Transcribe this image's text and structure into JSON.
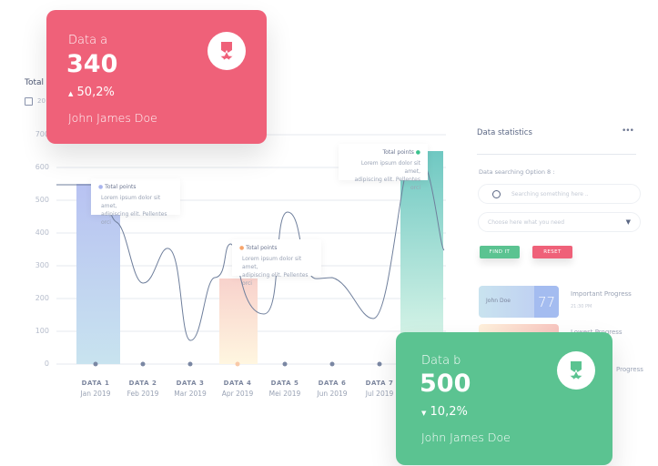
{
  "header": {
    "title": "Total",
    "date": "20"
  },
  "card_a": {
    "label": "Data a",
    "value": "340",
    "change": "50,2%",
    "trend": "up",
    "name": "John James Doe",
    "color": "#ef6179",
    "icon": "award-icon"
  },
  "card_b": {
    "label": "Data b",
    "value": "500",
    "change": "10,2%",
    "trend": "down",
    "name": "John James Doe",
    "color": "#5bc391",
    "icon": "award-icon"
  },
  "panel": {
    "title": "Data statistics",
    "menu_icon": "more-horizontal-icon",
    "search_label": "Data searching Option 8 :",
    "search_placeholder": "Searching something here ..",
    "select_placeholder": "Choose here what you need",
    "find_label": "FIND IT",
    "reset_label": "RESET",
    "progress": [
      {
        "name": "John Doe",
        "value": "77",
        "title": "Important Progress",
        "time": "21:30 PM"
      },
      {
        "title": "Lowest Progress"
      },
      {
        "title": "Progress"
      }
    ]
  },
  "tooltips": [
    {
      "title": "Total points",
      "text1": "Lorem ipsum dolor sit amet,",
      "text2": "adipiscing elit. Pellentes orci"
    },
    {
      "title": "Total points",
      "text1": "Lorem ipsum dolor sit amet,",
      "text2": "adipiscing elit. Pellentes orci"
    },
    {
      "title": "Total points",
      "text1": "Lorem ipsum dolor sit amet,",
      "text2": "adipiscing elit. Pellentes orci"
    }
  ],
  "chart_data": {
    "type": "line",
    "y_ticks": [
      "0",
      "100",
      "200",
      "300",
      "400",
      "500",
      "600",
      "700"
    ],
    "ylim": [
      0,
      700
    ],
    "categories": [
      {
        "label": "DATA 1",
        "date": "Jan 2019"
      },
      {
        "label": "DATA 2",
        "date": "Feb 2019"
      },
      {
        "label": "DATA 3",
        "date": "Mar 2019"
      },
      {
        "label": "DATA 4",
        "date": "Apr 2019"
      },
      {
        "label": "DATA 5",
        "date": "Mei 2019"
      },
      {
        "label": "DATA 6",
        "date": "Jun 2019"
      },
      {
        "label": "DATA 7",
        "date": "Jul 2019"
      }
    ],
    "highlight_bars": [
      {
        "category": "DATA 1",
        "value": 550
      },
      {
        "category": "DATA 4",
        "value": 260
      },
      {
        "category": "DATA 8",
        "value": 650
      }
    ],
    "grid": true
  }
}
